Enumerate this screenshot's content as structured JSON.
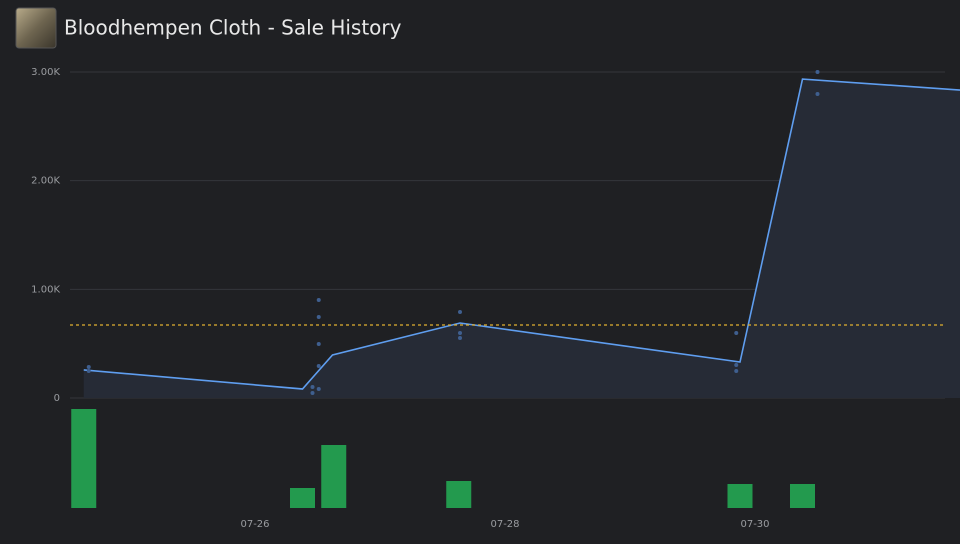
{
  "chart_data": {
    "type": "line",
    "title": "Bloodhempen Cloth - Sale History",
    "xlim": [
      24.52,
      31.64
    ],
    "xticks": [
      {
        "value": 26,
        "label": "07-26"
      },
      {
        "value": 28,
        "label": "07-28"
      },
      {
        "value": 30,
        "label": "07-30"
      }
    ],
    "ylim": [
      0,
      3000
    ],
    "yticks": [
      0,
      {
        "value": 1000,
        "label": "1.00K"
      },
      {
        "value": 2000,
        "label": "2.00K"
      },
      {
        "value": 3000,
        "label": "3.00K"
      }
    ],
    "grid": true,
    "series": [
      {
        "type": "line",
        "color": "#5f9ef0",
        "x": [
          24.63,
          26.38,
          26.62,
          27.64,
          29.88,
          30.38,
          31.64
        ],
        "values": [
          258,
          83,
          396,
          690,
          331,
          2935,
          2834
        ]
      },
      {
        "type": "scatter",
        "color": "#3f5f8f",
        "x": [
          24.67,
          24.67,
          26.51,
          26.51,
          26.51,
          26.51,
          26.46,
          26.46,
          26.51,
          27.64,
          27.64,
          27.64,
          29.85,
          29.85,
          29.85,
          30.5,
          30.5
        ],
        "values": [
          285,
          248,
          902,
          745,
          497,
          294,
          101,
          46,
          83,
          791,
          598,
          552,
          598,
          304,
          248,
          3000,
          2797
        ]
      },
      {
        "type": "bar",
        "color": "#239a4e",
        "x": [
          24.63,
          26.38,
          26.63,
          27.63,
          29.88,
          30.38
        ],
        "values": [
          99,
          20,
          63,
          27,
          24,
          24
        ]
      }
    ],
    "average": {
      "value": 672,
      "color": "#e0b030"
    }
  }
}
